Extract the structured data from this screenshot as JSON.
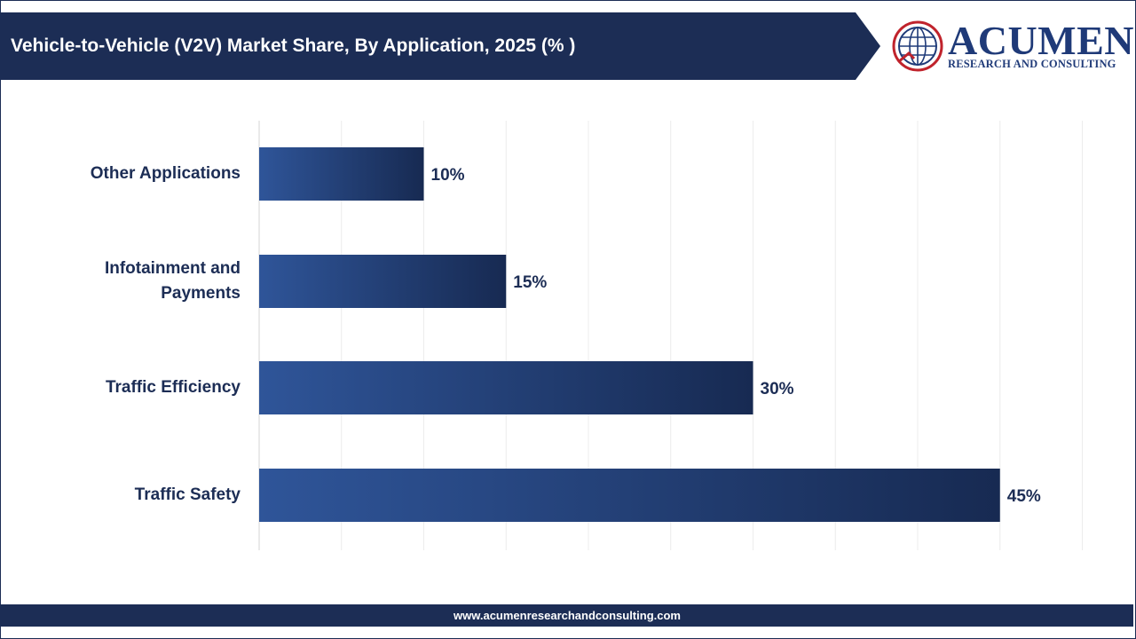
{
  "header": {
    "title": "Vehicle-to-Vehicle (V2V) Market Share, By Application, 2025 (% )"
  },
  "logo": {
    "name": "ACUMEN",
    "subtitle": "RESEARCH AND CONSULTING",
    "icon": "globe-icon"
  },
  "footer": {
    "url": "www.acumenresearchandconsulting.com"
  },
  "colors": {
    "header_bg": "#1c2d55",
    "bar_light": "#2f5599",
    "bar_dark": "#172a52",
    "text": "#1c2d55",
    "logo_red": "#c0232c"
  },
  "chart_data": {
    "type": "bar",
    "orientation": "horizontal",
    "title": "Vehicle-to-Vehicle (V2V) Market Share, By Application, 2025 (% )",
    "categories": [
      "Other Applications",
      "Infotainment and Payments",
      "Traffic Efficiency",
      "Traffic Safety"
    ],
    "values": [
      10,
      15,
      30,
      45
    ],
    "data_labels": [
      "10%",
      "15%",
      "30%",
      "45%"
    ],
    "xlim": [
      0,
      50
    ],
    "grid": true,
    "legend": "none"
  }
}
